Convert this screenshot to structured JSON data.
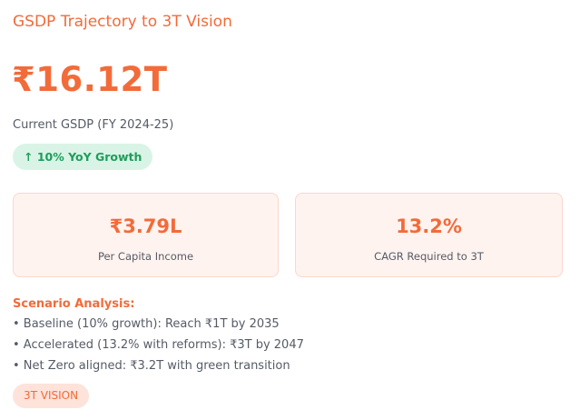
{
  "header": {
    "title": "GSDP Trajectory to 3T Vision"
  },
  "headline": {
    "value": "₹16.12T",
    "label": "Current GSDP (FY 2024-25)",
    "badge": "↑ 10% YoY Growth"
  },
  "stats": [
    {
      "value": "₹3.79L",
      "label": "Per Capita Income"
    },
    {
      "value": "13.2%",
      "label": "CAGR Required to 3T"
    }
  ],
  "scenarios": {
    "title": "Scenario Analysis:",
    "items": [
      "• Baseline (10% growth): Reach ₹1T by 2035",
      "• Accelerated (13.2% with reforms): ₹3T by 2047",
      "• Net Zero aligned: ₹3.2T with green transition"
    ]
  },
  "tag": "3T VISION"
}
